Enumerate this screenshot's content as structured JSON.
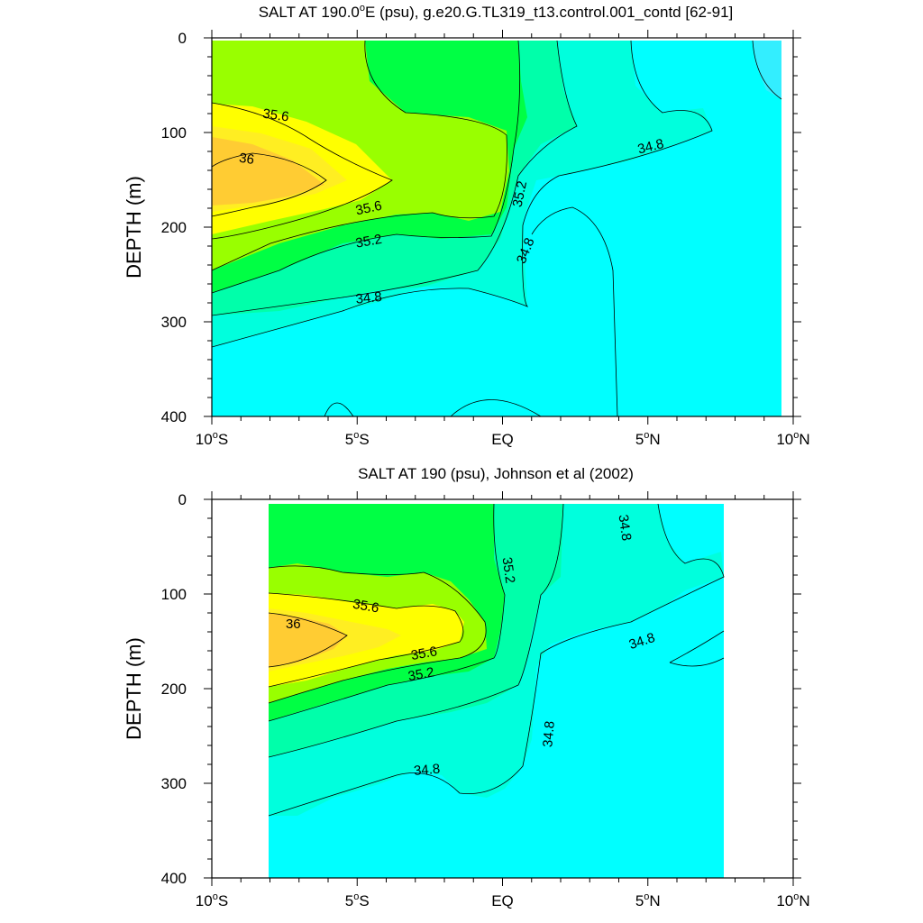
{
  "colors": {
    "lt_34_8": "#00ffff",
    "c34_8_35": "#00ffdd",
    "c35_35_2": "#00ffaa",
    "c35_2_35_4": "#00ff44",
    "c35_4_35_6": "#99ff00",
    "c35_6_35_8": "#ffff00",
    "c35_8_36": "#ffee22",
    "gt_36": "#ffcc33",
    "fresh_corner": "#33eeff",
    "line": "#000000"
  },
  "chart_data": [
    {
      "type": "contour",
      "title_main": "SALT AT 190.0",
      "title_deg": "o",
      "title_rest": "E (psu), g.e20.G.TL319_t13.control.001_contd [62-91]",
      "ylabel": "DEPTH (m)",
      "xlim": [
        -10,
        10
      ],
      "ylim": [
        400,
        0
      ],
      "xticks": [
        {
          "value": -10,
          "num": "10",
          "hemi": "S"
        },
        {
          "value": -5,
          "num": "5",
          "hemi": "S"
        },
        {
          "value": 0,
          "num": "EQ",
          "hemi": ""
        },
        {
          "value": 5,
          "num": "5",
          "hemi": "N"
        },
        {
          "value": 10,
          "num": "10",
          "hemi": "N"
        }
      ],
      "yticks": [
        {
          "value": 0,
          "label": "0"
        },
        {
          "value": 100,
          "label": "100"
        },
        {
          "value": 200,
          "label": "200"
        },
        {
          "value": 300,
          "label": "300"
        },
        {
          "value": 400,
          "label": "400"
        }
      ],
      "data_x_range": [
        -10,
        9.2
      ],
      "contour_levels": [
        34.8,
        35.0,
        35.2,
        35.4,
        35.6,
        35.8,
        36.0
      ],
      "max_salinity_core": {
        "lon": -9,
        "depth": 160,
        "approx_value": 36.1
      },
      "contour_labels": [
        {
          "text": "35.6",
          "lon": -7.8,
          "depth": 82,
          "angle": 8
        },
        {
          "text": "36",
          "lon": -8.8,
          "depth": 128,
          "angle": 8
        },
        {
          "text": "35.6",
          "lon": -4.6,
          "depth": 180,
          "angle": -12
        },
        {
          "text": "35.2",
          "lon": -4.6,
          "depth": 215,
          "angle": -10
        },
        {
          "text": "34.8",
          "lon": -4.6,
          "depth": 275,
          "angle": -6
        },
        {
          "text": "35.2",
          "lon": 0.6,
          "depth": 165,
          "angle": -78
        },
        {
          "text": "34.8",
          "lon": 0.8,
          "depth": 225,
          "angle": -68
        },
        {
          "text": "34.8",
          "lon": 5.1,
          "depth": 115,
          "angle": -14
        }
      ]
    },
    {
      "type": "contour",
      "title_main": "SALT AT 190 (psu), Johnson et al (2002)",
      "title_deg": "",
      "title_rest": "",
      "ylabel": "DEPTH (m)",
      "xlim": [
        -10,
        10
      ],
      "ylim": [
        400,
        0
      ],
      "xticks": [
        {
          "value": -10,
          "num": "10",
          "hemi": "S"
        },
        {
          "value": -5,
          "num": "5",
          "hemi": "S"
        },
        {
          "value": 0,
          "num": "EQ",
          "hemi": ""
        },
        {
          "value": 5,
          "num": "5",
          "hemi": "N"
        },
        {
          "value": 10,
          "num": "10",
          "hemi": "N"
        }
      ],
      "yticks": [
        {
          "value": 0,
          "label": "0"
        },
        {
          "value": 100,
          "label": "100"
        },
        {
          "value": 200,
          "label": "200"
        },
        {
          "value": 300,
          "label": "300"
        },
        {
          "value": 400,
          "label": "400"
        }
      ],
      "data_x_range": [
        -8,
        8
      ],
      "contour_levels": [
        34.8,
        35.0,
        35.2,
        35.4,
        35.6,
        35.8,
        36.0
      ],
      "max_salinity_core": {
        "lon": -7.5,
        "depth": 145,
        "approx_value": 36.1
      },
      "contour_labels": [
        {
          "text": "35.6",
          "lon": -4.7,
          "depth": 113,
          "angle": 10
        },
        {
          "text": "36",
          "lon": -7.2,
          "depth": 132,
          "angle": 0
        },
        {
          "text": "35.6",
          "lon": -2.7,
          "depth": 163,
          "angle": -10
        },
        {
          "text": "35.2",
          "lon": -2.8,
          "depth": 185,
          "angle": -10
        },
        {
          "text": "34.8",
          "lon": -2.6,
          "depth": 286,
          "angle": -5
        },
        {
          "text": "35.2",
          "lon": 0.2,
          "depth": 75,
          "angle": 82
        },
        {
          "text": "34.8",
          "lon": 1.6,
          "depth": 248,
          "angle": -85
        },
        {
          "text": "34.8",
          "lon": 4.2,
          "depth": 30,
          "angle": 82
        },
        {
          "text": "34.8",
          "lon": 4.8,
          "depth": 150,
          "angle": -18
        }
      ]
    }
  ]
}
